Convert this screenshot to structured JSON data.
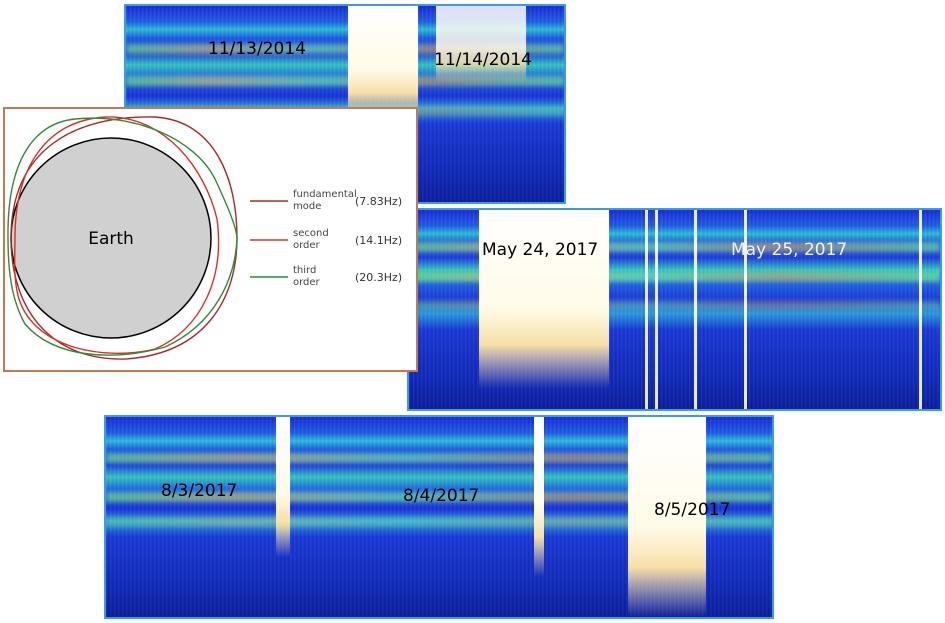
{
  "spectrograms": [
    {
      "id": "2014",
      "dates": [
        "11/13/2014",
        "11/14/2014"
      ]
    },
    {
      "id": "2017-may",
      "dates": [
        "May 24, 2017",
        "May 25, 2017"
      ]
    },
    {
      "id": "2017-aug",
      "dates": [
        "8/3/2017",
        "8/4/2017",
        "8/5/2017"
      ]
    }
  ],
  "diagram": {
    "earth_label": "Earth",
    "modes": [
      {
        "line1": "fundamental",
        "line2": "mode",
        "freq": "(7.83Hz)",
        "color": "#a52a2a"
      },
      {
        "line1": "second",
        "line2": "order",
        "freq": "(14.1Hz)",
        "color": "#d93025"
      },
      {
        "line1": "third",
        "line2": "order",
        "freq": "(20.3Hz)",
        "color": "#2e8b3a"
      }
    ],
    "earth_fill": "#d0d0d0"
  }
}
